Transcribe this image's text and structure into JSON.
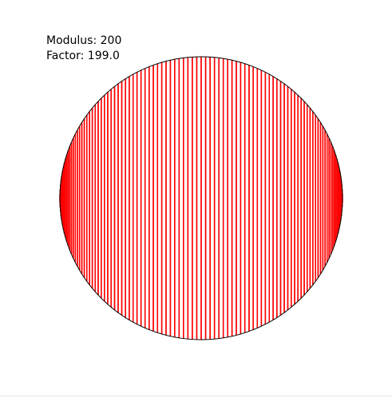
{
  "readouts": {
    "modulus_label": "Modulus:",
    "modulus_value": "200",
    "factor_label": "Factor:",
    "factor_value": "199.0"
  },
  "diagram": {
    "type": "times-table-circle",
    "modulus": 200,
    "factor": 199.0,
    "line_color": "#ff0000",
    "circle_color": "#000000",
    "background": "#ffffff"
  }
}
